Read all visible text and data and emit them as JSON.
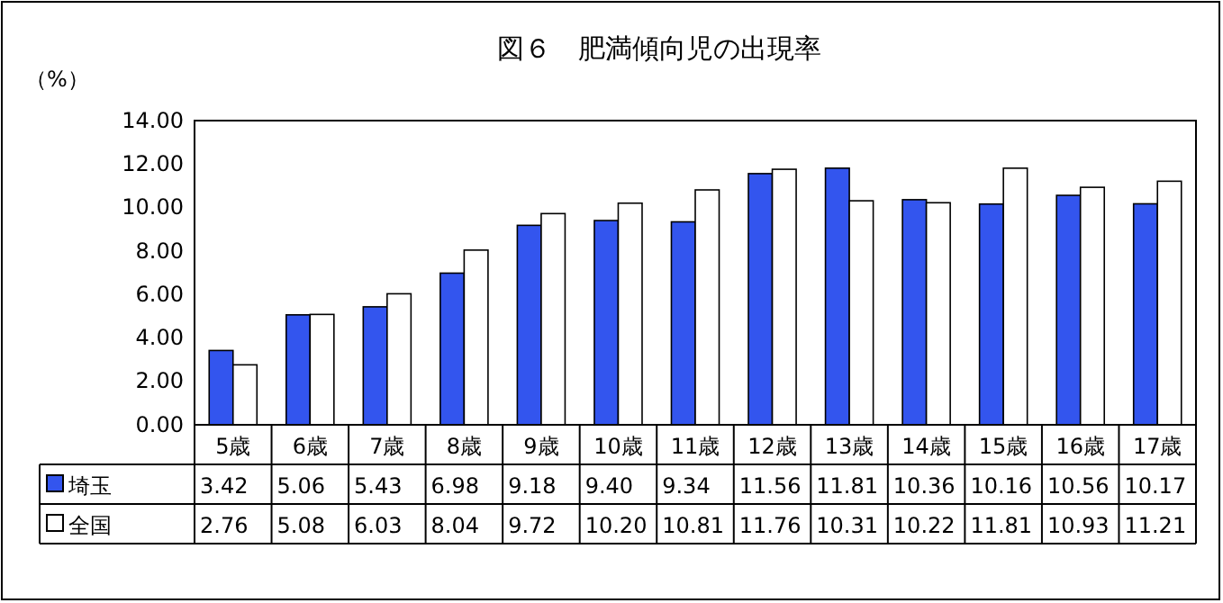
{
  "chart_data": {
    "type": "bar",
    "title": "図６　肥満傾向児の出現率",
    "ylabel": "（%）",
    "categories": [
      "5歳",
      "6歳",
      "7歳",
      "8歳",
      "9歳",
      "10歳",
      "11歳",
      "12歳",
      "13歳",
      "14歳",
      "15歳",
      "16歳",
      "17歳"
    ],
    "series": [
      {
        "name": "埼玉",
        "color": "#3355ee",
        "values": [
          3.42,
          5.06,
          5.43,
          6.98,
          9.18,
          9.4,
          9.34,
          11.56,
          11.81,
          10.36,
          10.16,
          10.56,
          10.17
        ],
        "value_labels": [
          "3.42",
          "5.06",
          "5.43",
          "6.98",
          "9.18",
          "9.40",
          "9.34",
          "11.56",
          "11.81",
          "10.36",
          "10.16",
          "10.56",
          "10.17"
        ]
      },
      {
        "name": "全国",
        "color": "#ffffff",
        "values": [
          2.76,
          5.08,
          6.03,
          8.04,
          9.72,
          10.2,
          10.81,
          11.76,
          10.31,
          10.22,
          11.81,
          10.93,
          11.21
        ],
        "value_labels": [
          "2.76",
          "5.08",
          "6.03",
          "8.04",
          "9.72",
          "10.20",
          "10.81",
          "11.76",
          "10.31",
          "10.22",
          "11.81",
          "10.93",
          "11.21"
        ]
      }
    ],
    "ylim": [
      0,
      14
    ],
    "yticks": [
      {
        "value": 0,
        "label": "0.00"
      },
      {
        "value": 2,
        "label": "2.00"
      },
      {
        "value": 4,
        "label": "4.00"
      },
      {
        "value": 6,
        "label": "6.00"
      },
      {
        "value": 8,
        "label": "8.00"
      },
      {
        "value": 10,
        "label": "10.00"
      },
      {
        "value": 12,
        "label": "12.00"
      },
      {
        "value": 14,
        "label": "14.00"
      }
    ],
    "legend": "bottom left"
  }
}
